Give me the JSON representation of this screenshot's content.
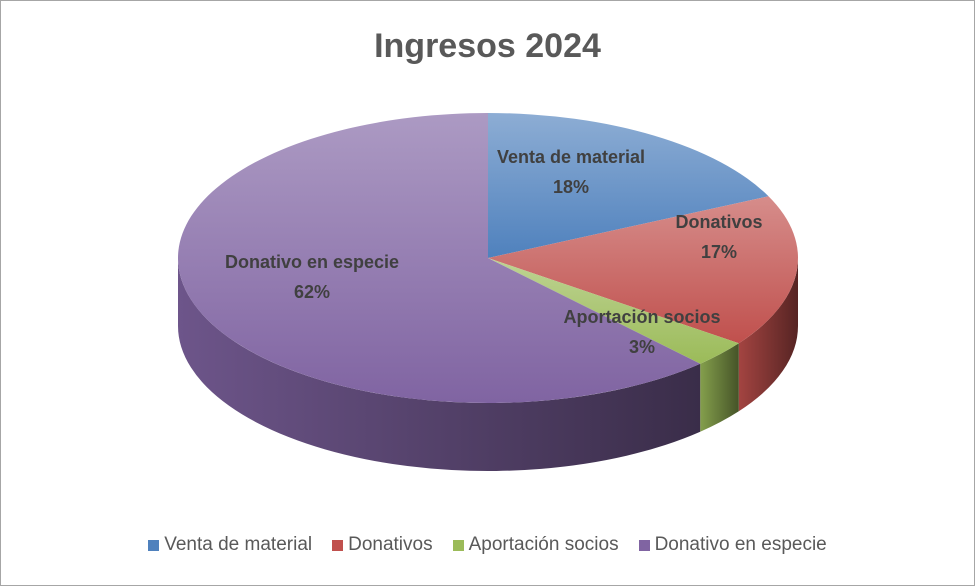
{
  "chart_data": {
    "type": "pie",
    "title": "Ingresos 2024",
    "style": "3d",
    "legend_position": "bottom",
    "categories": [
      "Venta de material",
      "Donativos",
      "Aportación socios",
      "Donativo en especie"
    ],
    "values": [
      18,
      17,
      3,
      62
    ],
    "data_labels": [
      "18%",
      "17%",
      "3%",
      "62%"
    ],
    "colors": [
      "#4f81bd",
      "#c0504d",
      "#9bbb59",
      "#8064a2"
    ]
  }
}
